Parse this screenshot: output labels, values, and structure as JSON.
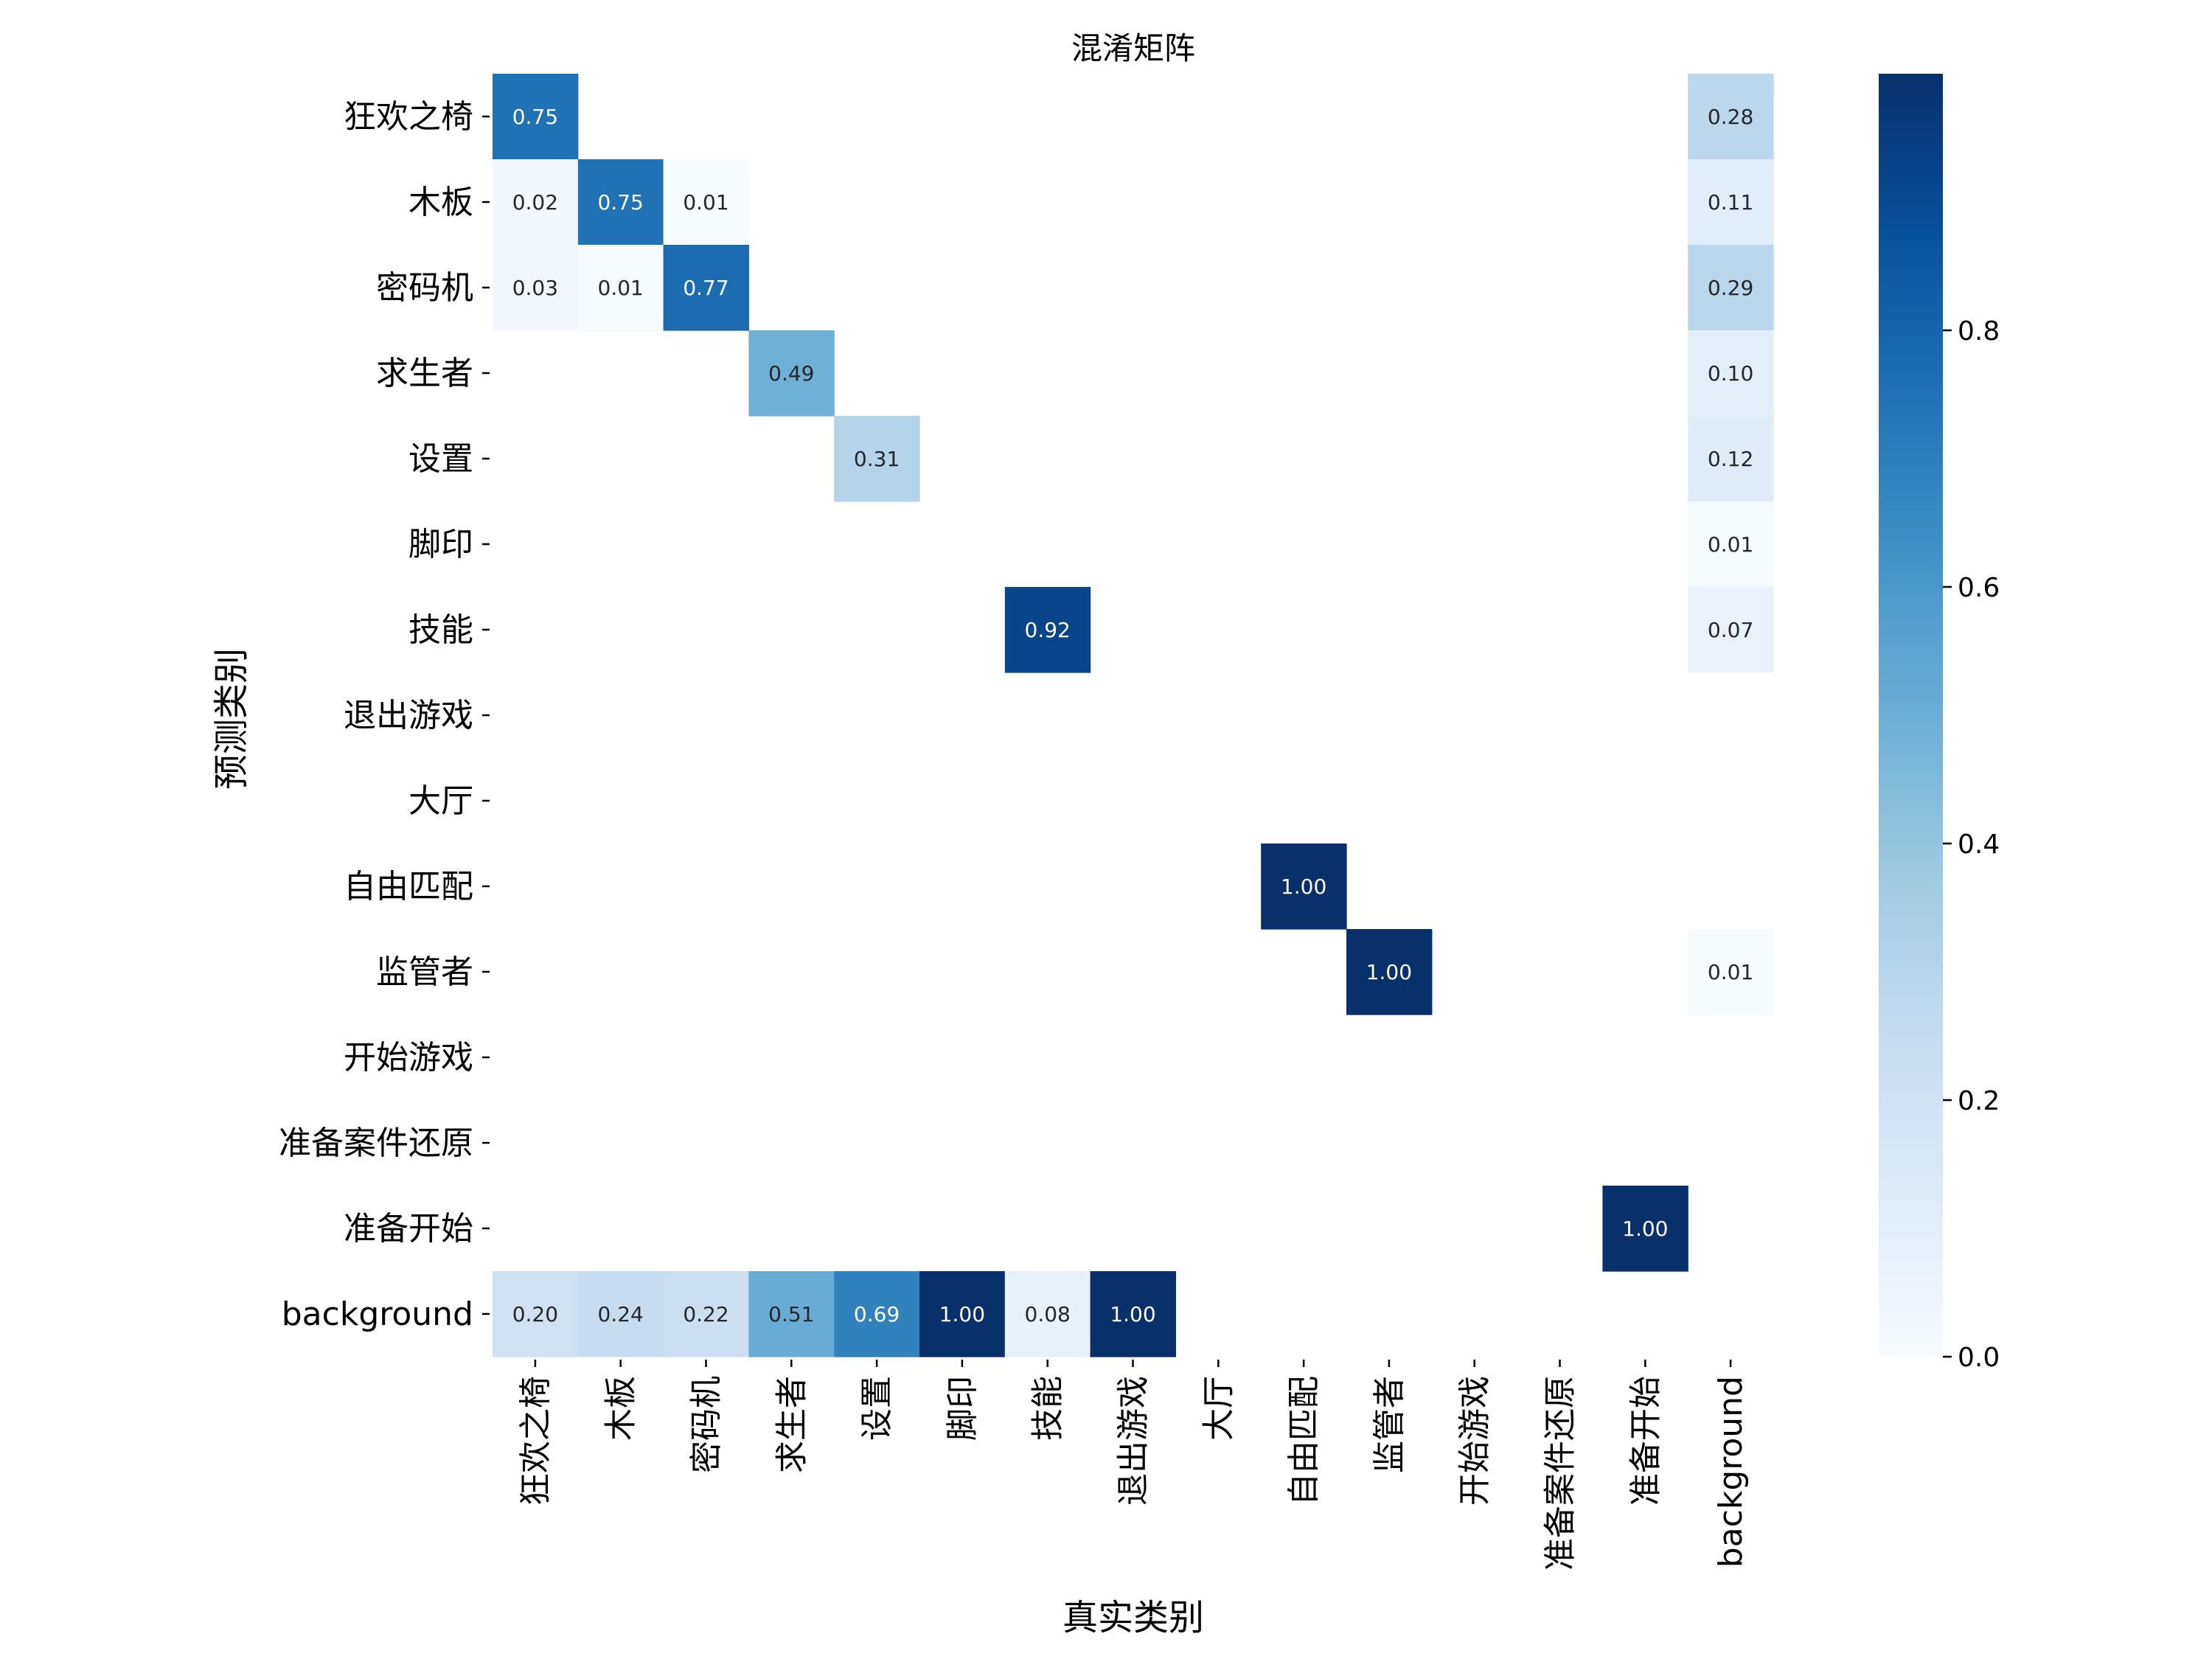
{
  "chart_data": {
    "type": "heatmap",
    "title": "混淆矩阵",
    "xlabel": "真实类别",
    "ylabel": "预测类别",
    "x_categories": [
      "狂欢之椅",
      "木板",
      "密码机",
      "求生者",
      "设置",
      "脚印",
      "技能",
      "退出游戏",
      "大厅",
      "自由匹配",
      "监管者",
      "开始游戏",
      "准备案件还原",
      "准备开始",
      "background"
    ],
    "y_categories": [
      "狂欢之椅",
      "木板",
      "密码机",
      "求生者",
      "设置",
      "脚印",
      "技能",
      "退出游戏",
      "大厅",
      "自由匹配",
      "监管者",
      "开始游戏",
      "准备案件还原",
      "准备开始",
      "background"
    ],
    "values": [
      [
        0.75,
        null,
        null,
        null,
        null,
        null,
        null,
        null,
        null,
        null,
        null,
        null,
        null,
        null,
        0.28
      ],
      [
        0.02,
        0.75,
        0.01,
        null,
        null,
        null,
        null,
        null,
        null,
        null,
        null,
        null,
        null,
        null,
        0.11
      ],
      [
        0.03,
        0.01,
        0.77,
        null,
        null,
        null,
        null,
        null,
        null,
        null,
        null,
        null,
        null,
        null,
        0.29
      ],
      [
        null,
        null,
        null,
        0.49,
        null,
        null,
        null,
        null,
        null,
        null,
        null,
        null,
        null,
        null,
        0.1
      ],
      [
        null,
        null,
        null,
        null,
        0.31,
        null,
        null,
        null,
        null,
        null,
        null,
        null,
        null,
        null,
        0.12
      ],
      [
        null,
        null,
        null,
        null,
        null,
        null,
        null,
        null,
        null,
        null,
        null,
        null,
        null,
        null,
        0.01
      ],
      [
        null,
        null,
        null,
        null,
        null,
        null,
        0.92,
        null,
        null,
        null,
        null,
        null,
        null,
        null,
        0.07
      ],
      [
        null,
        null,
        null,
        null,
        null,
        null,
        null,
        null,
        null,
        null,
        null,
        null,
        null,
        null,
        null
      ],
      [
        null,
        null,
        null,
        null,
        null,
        null,
        null,
        null,
        null,
        null,
        null,
        null,
        null,
        null,
        null
      ],
      [
        null,
        null,
        null,
        null,
        null,
        null,
        null,
        null,
        null,
        1.0,
        null,
        null,
        null,
        null,
        null
      ],
      [
        null,
        null,
        null,
        null,
        null,
        null,
        null,
        null,
        null,
        null,
        1.0,
        null,
        null,
        null,
        0.01
      ],
      [
        null,
        null,
        null,
        null,
        null,
        null,
        null,
        null,
        null,
        null,
        null,
        null,
        null,
        null,
        null
      ],
      [
        null,
        null,
        null,
        null,
        null,
        null,
        null,
        null,
        null,
        null,
        null,
        null,
        null,
        null,
        null
      ],
      [
        null,
        null,
        null,
        null,
        null,
        null,
        null,
        null,
        null,
        null,
        null,
        null,
        null,
        1.0,
        null
      ],
      [
        0.2,
        0.24,
        0.22,
        0.51,
        0.69,
        1.0,
        0.08,
        1.0,
        null,
        null,
        null,
        null,
        null,
        null,
        null
      ]
    ],
    "colormap": "Blues",
    "colormap_stops": [
      "#f7fbff",
      "#deebf7",
      "#c6dbef",
      "#9ecae1",
      "#6baed6",
      "#4292c6",
      "#2171b5",
      "#08519c",
      "#08306b"
    ],
    "vmin": 0.0,
    "vmax": 1.0,
    "colorbar_ticks": [
      0.0,
      0.2,
      0.4,
      0.6,
      0.8
    ],
    "colorbar_tick_labels": [
      "0.0",
      "0.2",
      "0.4",
      "0.6",
      "0.8"
    ],
    "value_format": "2 decimals",
    "grid": false,
    "legend": "colorbar right"
  }
}
